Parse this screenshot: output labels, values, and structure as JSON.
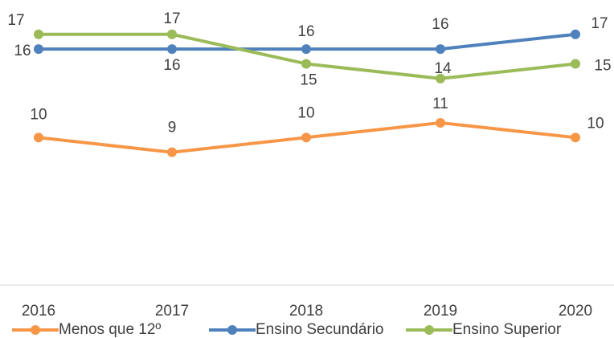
{
  "chart_data": {
    "type": "line",
    "categories": [
      "2016",
      "2017",
      "2018",
      "2019",
      "2020"
    ],
    "series": [
      {
        "name": "Menos que 12º",
        "color": "#f79646",
        "values": [
          10,
          9,
          10,
          11,
          10
        ]
      },
      {
        "name": "Ensino Secundário",
        "color": "#4f81bd",
        "values": [
          16,
          16,
          16,
          16,
          17
        ]
      },
      {
        "name": "Ensino Superior",
        "color": "#9bbb59",
        "values": [
          17,
          17,
          15,
          14,
          15
        ]
      }
    ],
    "ylim": [
      0,
      19
    ],
    "legend": "bottom"
  }
}
